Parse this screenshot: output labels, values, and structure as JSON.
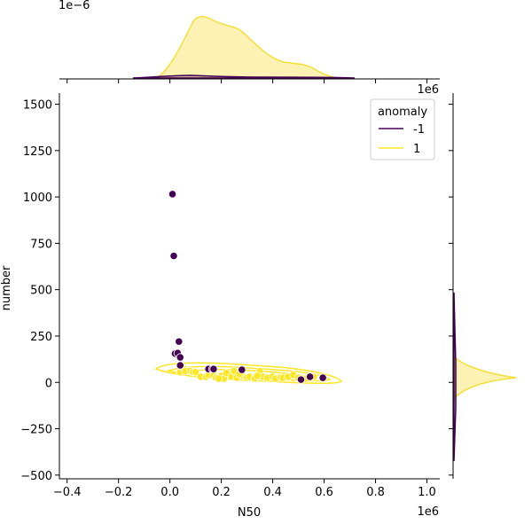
{
  "chart_data": {
    "type": "scatter",
    "subtype": "jointplot with kde contours and marginal kde",
    "xlabel": "N50",
    "ylabel": "number",
    "x_offset_text": "1e6",
    "y_offset_text": "1e6",
    "top_marginal_offset_text": "1e−6",
    "xlim": [
      -0.43,
      1.05
    ],
    "ylim": [
      -520,
      1560
    ],
    "x_ticks": [
      -0.4,
      -0.2,
      0.0,
      0.2,
      0.4,
      0.6,
      0.8,
      1.0
    ],
    "x_tick_labels": [
      "−0.4",
      "−0.2",
      "0.0",
      "0.2",
      "0.4",
      "0.6",
      "0.8",
      "1.0"
    ],
    "y_ticks": [
      -500,
      -250,
      0,
      250,
      500,
      750,
      1000,
      1250,
      1500
    ],
    "y_tick_labels": [
      "−500",
      "−250",
      "0",
      "250",
      "500",
      "750",
      "1000",
      "1250",
      "1500"
    ],
    "legend": {
      "title": "anomaly",
      "position": "upper right",
      "entries": [
        {
          "label": "-1",
          "color": "#440154"
        },
        {
          "label": "1",
          "color": "#fde725"
        }
      ]
    },
    "colors": {
      "anomaly_neg": "#440154",
      "anomaly_pos": "#fde725",
      "pos_edge": "#f2e03a",
      "pos_fill": "#fdf2b4"
    },
    "series": [
      {
        "name": "-1",
        "x": [
          0.01,
          0.015,
          0.02,
          0.03,
          0.035,
          0.04,
          0.04,
          0.15,
          0.165,
          0.17,
          0.28,
          0.51,
          0.545,
          0.595
        ],
        "y": [
          1015,
          682,
          155,
          158,
          220,
          135,
          92,
          72,
          72,
          72,
          68,
          15,
          30,
          25
        ]
      },
      {
        "name": "1",
        "x": [
          0.04,
          0.05,
          0.06,
          0.08,
          0.09,
          0.1,
          0.12,
          0.14,
          0.15,
          0.17,
          0.18,
          0.2,
          0.21,
          0.22,
          0.24,
          0.25,
          0.26,
          0.28,
          0.3,
          0.31,
          0.33,
          0.35,
          0.36,
          0.38,
          0.4,
          0.41,
          0.43,
          0.44,
          0.46,
          0.48,
          0.5,
          0.53,
          0.56,
          0.19,
          0.27,
          0.34
        ],
        "y": [
          55,
          80,
          60,
          62,
          55,
          55,
          30,
          30,
          40,
          40,
          25,
          35,
          20,
          50,
          30,
          60,
          25,
          38,
          25,
          30,
          22,
          60,
          30,
          25,
          30,
          20,
          28,
          25,
          30,
          40,
          25,
          20,
          30,
          20,
          45,
          35
        ]
      }
    ]
  }
}
